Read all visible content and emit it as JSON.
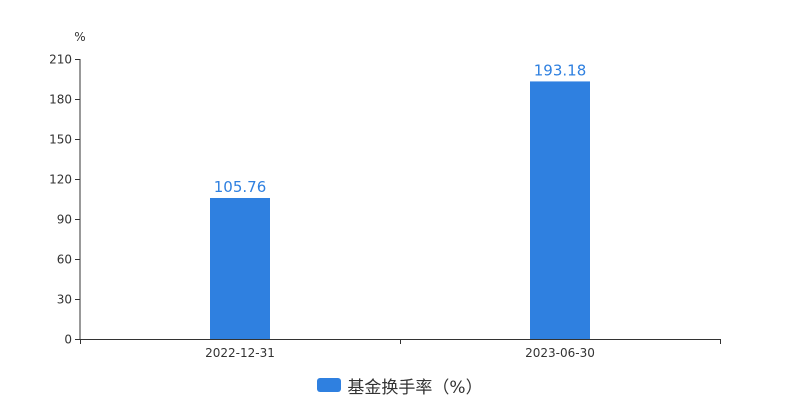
{
  "chart_data": {
    "type": "bar",
    "categories": [
      "2022-12-31",
      "2023-06-30"
    ],
    "series": [
      {
        "name": "基金换手率（%）",
        "values": [
          105.76,
          193.18
        ]
      }
    ],
    "y_unit": "%",
    "ylim": [
      0,
      210
    ],
    "yticks": [
      0,
      30,
      60,
      90,
      120,
      150,
      180,
      210
    ],
    "data_labels": [
      "105.76",
      "193.18"
    ],
    "grid": false,
    "legend_position": "bottom-center",
    "colors": {
      "bar": "#2f80e0",
      "label": "#2f80e0",
      "axis": "#333333"
    }
  }
}
